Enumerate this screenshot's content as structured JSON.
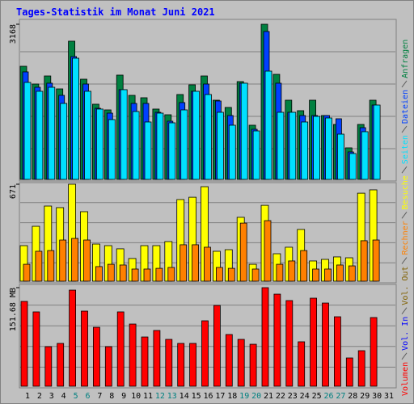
{
  "chart_data": {
    "type": "bar",
    "title": "Tages-Statistik im Monat Juni 2021",
    "grid": true,
    "categories": [
      "1",
      "2",
      "3",
      "4",
      "5",
      "6",
      "7",
      "8",
      "9",
      "10",
      "11",
      "12",
      "13",
      "14",
      "15",
      "16",
      "17",
      "18",
      "19",
      "20",
      "21",
      "22",
      "23",
      "24",
      "25",
      "26",
      "27",
      "28",
      "29",
      "30",
      "31"
    ],
    "category_colors": [
      "#000000",
      "#000000",
      "#000000",
      "#000000",
      "#008080",
      "#008080",
      "#000000",
      "#000000",
      "#000000",
      "#000000",
      "#000000",
      "#008080",
      "#008080",
      "#000000",
      "#000000",
      "#000000",
      "#000000",
      "#000000",
      "#008080",
      "#008080",
      "#000000",
      "#000000",
      "#000000",
      "#000000",
      "#000000",
      "#008080",
      "#008080",
      "#000000",
      "#000000",
      "#000000",
      "#000000"
    ],
    "panels": [
      {
        "ylim": [
          0,
          3168
        ],
        "yticks": [
          3168
        ],
        "series": [
          {
            "name": "Anfragen",
            "color": "#008040",
            "values": [
              2310,
              1947,
              2112,
              1848,
              2822,
              2046,
              1535,
              1419,
              2129,
              1716,
              1667,
              1436,
              1320,
              1733,
              1931,
              2112,
              1617,
              1469,
              1997,
              1106,
              3168,
              2145,
              1617,
              1403,
              1617,
              1304,
              1122,
              644,
              1122,
              1617,
              null
            ]
          },
          {
            "name": "Dateien",
            "color": "#0040ff",
            "values": [
              2195,
              1881,
              1964,
              1716,
              2508,
              1947,
              1452,
              1353,
              1832,
              1551,
              1551,
              1370,
              1188,
              1568,
              1799,
              1947,
              1601,
              1304,
              1964,
              1023,
              3020,
              1964,
              1370,
              1304,
              1304,
              1304,
              1238,
              561,
              1056,
              1518,
              null
            ]
          },
          {
            "name": "Seiten",
            "color": "#00e0ff",
            "values": [
              1980,
              1799,
              1881,
              1551,
              2475,
              1799,
              1436,
              1221,
              1832,
              1386,
              1172,
              1353,
              1155,
              1419,
              1799,
              1733,
              1370,
              1106,
              1964,
              990,
              2211,
              1370,
              1370,
              1172,
              1287,
              1254,
              924,
              528,
              974,
              1518,
              null
            ]
          }
        ]
      },
      {
        "ylim": [
          0,
          671
        ],
        "yticks": [
          671
        ],
        "series": [
          {
            "name": "Besuche",
            "color": "#ffff00",
            "values": [
              246,
              380,
              520,
              509,
              671,
              481,
              257,
              246,
              224,
              157,
              246,
              246,
              274,
              565,
              581,
              654,
              207,
              218,
              442,
              117,
              525,
              190,
              235,
              358,
              140,
              151,
              168,
              162,
              609,
              632,
              null
            ]
          },
          {
            "name": "Rechner",
            "color": "#ff8000",
            "values": [
              117,
              207,
              212,
              285,
              296,
              285,
              101,
              117,
              112,
              84,
              84,
              89,
              95,
              252,
              252,
              235,
              95,
              89,
              402,
              84,
              419,
              117,
              140,
              212,
              84,
              84,
              112,
              106,
              280,
              285,
              null
            ]
          }
        ]
      },
      {
        "ylim": [
          0,
          151.68
        ],
        "yticks": [
          {
            "value": 151.68,
            "label": "151.68 MB"
          }
        ],
        "series": [
          {
            "name": "Volumen",
            "color": "#ff0000",
            "values": [
              130.5,
              114.4,
              60.9,
              65.9,
              147.9,
              115.6,
              90.7,
              60.9,
              114.4,
              95.7,
              75.8,
              85.8,
              72.1,
              65.9,
              65.9,
              100.7,
              124.3,
              79.6,
              72.1,
              64.6,
              151.68,
              141.7,
              131.8,
              68.4,
              135.5,
              128.0,
              106.9,
              43.5,
              54.7,
              105.7,
              null
            ]
          }
        ],
        "legend_entries": [
          {
            "name": "Vol. In",
            "color": "#0000ff"
          },
          {
            "name": "Vol. Out",
            "color": "#806000"
          }
        ]
      }
    ]
  }
}
